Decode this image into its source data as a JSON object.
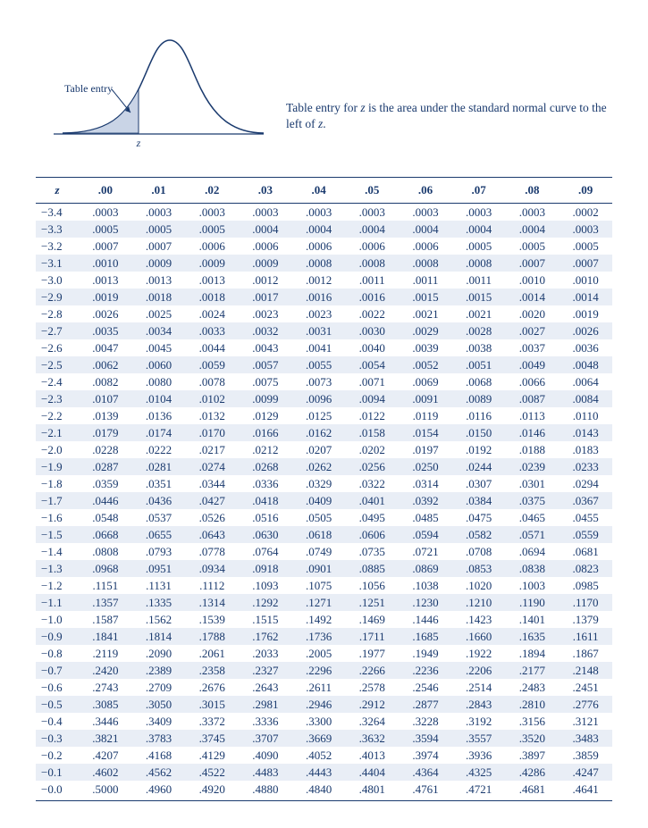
{
  "curve": {
    "entry_label": "Table entry",
    "z_label": "z",
    "stroke": "#1a3a6e",
    "fill": "#c9d4e6"
  },
  "caption_parts": [
    "Table entry for ",
    "z",
    " is the area under the standard normal curve to the left of ",
    "z",
    "."
  ],
  "table": {
    "header": [
      "z",
      ".00",
      ".01",
      ".02",
      ".03",
      ".04",
      ".05",
      ".06",
      ".07",
      ".08",
      ".09"
    ],
    "rows": [
      [
        "−3.4",
        ".0003",
        ".0003",
        ".0003",
        ".0003",
        ".0003",
        ".0003",
        ".0003",
        ".0003",
        ".0003",
        ".0002"
      ],
      [
        "−3.3",
        ".0005",
        ".0005",
        ".0005",
        ".0004",
        ".0004",
        ".0004",
        ".0004",
        ".0004",
        ".0004",
        ".0003"
      ],
      [
        "−3.2",
        ".0007",
        ".0007",
        ".0006",
        ".0006",
        ".0006",
        ".0006",
        ".0006",
        ".0005",
        ".0005",
        ".0005"
      ],
      [
        "−3.1",
        ".0010",
        ".0009",
        ".0009",
        ".0009",
        ".0008",
        ".0008",
        ".0008",
        ".0008",
        ".0007",
        ".0007"
      ],
      [
        "−3.0",
        ".0013",
        ".0013",
        ".0013",
        ".0012",
        ".0012",
        ".0011",
        ".0011",
        ".0011",
        ".0010",
        ".0010"
      ],
      [
        "−2.9",
        ".0019",
        ".0018",
        ".0018",
        ".0017",
        ".0016",
        ".0016",
        ".0015",
        ".0015",
        ".0014",
        ".0014"
      ],
      [
        "−2.8",
        ".0026",
        ".0025",
        ".0024",
        ".0023",
        ".0023",
        ".0022",
        ".0021",
        ".0021",
        ".0020",
        ".0019"
      ],
      [
        "−2.7",
        ".0035",
        ".0034",
        ".0033",
        ".0032",
        ".0031",
        ".0030",
        ".0029",
        ".0028",
        ".0027",
        ".0026"
      ],
      [
        "−2.6",
        ".0047",
        ".0045",
        ".0044",
        ".0043",
        ".0041",
        ".0040",
        ".0039",
        ".0038",
        ".0037",
        ".0036"
      ],
      [
        "−2.5",
        ".0062",
        ".0060",
        ".0059",
        ".0057",
        ".0055",
        ".0054",
        ".0052",
        ".0051",
        ".0049",
        ".0048"
      ],
      [
        "−2.4",
        ".0082",
        ".0080",
        ".0078",
        ".0075",
        ".0073",
        ".0071",
        ".0069",
        ".0068",
        ".0066",
        ".0064"
      ],
      [
        "−2.3",
        ".0107",
        ".0104",
        ".0102",
        ".0099",
        ".0096",
        ".0094",
        ".0091",
        ".0089",
        ".0087",
        ".0084"
      ],
      [
        "−2.2",
        ".0139",
        ".0136",
        ".0132",
        ".0129",
        ".0125",
        ".0122",
        ".0119",
        ".0116",
        ".0113",
        ".0110"
      ],
      [
        "−2.1",
        ".0179",
        ".0174",
        ".0170",
        ".0166",
        ".0162",
        ".0158",
        ".0154",
        ".0150",
        ".0146",
        ".0143"
      ],
      [
        "−2.0",
        ".0228",
        ".0222",
        ".0217",
        ".0212",
        ".0207",
        ".0202",
        ".0197",
        ".0192",
        ".0188",
        ".0183"
      ],
      [
        "−1.9",
        ".0287",
        ".0281",
        ".0274",
        ".0268",
        ".0262",
        ".0256",
        ".0250",
        ".0244",
        ".0239",
        ".0233"
      ],
      [
        "−1.8",
        ".0359",
        ".0351",
        ".0344",
        ".0336",
        ".0329",
        ".0322",
        ".0314",
        ".0307",
        ".0301",
        ".0294"
      ],
      [
        "−1.7",
        ".0446",
        ".0436",
        ".0427",
        ".0418",
        ".0409",
        ".0401",
        ".0392",
        ".0384",
        ".0375",
        ".0367"
      ],
      [
        "−1.6",
        ".0548",
        ".0537",
        ".0526",
        ".0516",
        ".0505",
        ".0495",
        ".0485",
        ".0475",
        ".0465",
        ".0455"
      ],
      [
        "−1.5",
        ".0668",
        ".0655",
        ".0643",
        ".0630",
        ".0618",
        ".0606",
        ".0594",
        ".0582",
        ".0571",
        ".0559"
      ],
      [
        "−1.4",
        ".0808",
        ".0793",
        ".0778",
        ".0764",
        ".0749",
        ".0735",
        ".0721",
        ".0708",
        ".0694",
        ".0681"
      ],
      [
        "−1.3",
        ".0968",
        ".0951",
        ".0934",
        ".0918",
        ".0901",
        ".0885",
        ".0869",
        ".0853",
        ".0838",
        ".0823"
      ],
      [
        "−1.2",
        ".1151",
        ".1131",
        ".1112",
        ".1093",
        ".1075",
        ".1056",
        ".1038",
        ".1020",
        ".1003",
        ".0985"
      ],
      [
        "−1.1",
        ".1357",
        ".1335",
        ".1314",
        ".1292",
        ".1271",
        ".1251",
        ".1230",
        ".1210",
        ".1190",
        ".1170"
      ],
      [
        "−1.0",
        ".1587",
        ".1562",
        ".1539",
        ".1515",
        ".1492",
        ".1469",
        ".1446",
        ".1423",
        ".1401",
        ".1379"
      ],
      [
        "−0.9",
        ".1841",
        ".1814",
        ".1788",
        ".1762",
        ".1736",
        ".1711",
        ".1685",
        ".1660",
        ".1635",
        ".1611"
      ],
      [
        "−0.8",
        ".2119",
        ".2090",
        ".2061",
        ".2033",
        ".2005",
        ".1977",
        ".1949",
        ".1922",
        ".1894",
        ".1867"
      ],
      [
        "−0.7",
        ".2420",
        ".2389",
        ".2358",
        ".2327",
        ".2296",
        ".2266",
        ".2236",
        ".2206",
        ".2177",
        ".2148"
      ],
      [
        "−0.6",
        ".2743",
        ".2709",
        ".2676",
        ".2643",
        ".2611",
        ".2578",
        ".2546",
        ".2514",
        ".2483",
        ".2451"
      ],
      [
        "−0.5",
        ".3085",
        ".3050",
        ".3015",
        ".2981",
        ".2946",
        ".2912",
        ".2877",
        ".2843",
        ".2810",
        ".2776"
      ],
      [
        "−0.4",
        ".3446",
        ".3409",
        ".3372",
        ".3336",
        ".3300",
        ".3264",
        ".3228",
        ".3192",
        ".3156",
        ".3121"
      ],
      [
        "−0.3",
        ".3821",
        ".3783",
        ".3745",
        ".3707",
        ".3669",
        ".3632",
        ".3594",
        ".3557",
        ".3520",
        ".3483"
      ],
      [
        "−0.2",
        ".4207",
        ".4168",
        ".4129",
        ".4090",
        ".4052",
        ".4013",
        ".3974",
        ".3936",
        ".3897",
        ".3859"
      ],
      [
        "−0.1",
        ".4602",
        ".4562",
        ".4522",
        ".4483",
        ".4443",
        ".4404",
        ".4364",
        ".4325",
        ".4286",
        ".4247"
      ],
      [
        "−0.0",
        ".5000",
        ".4960",
        ".4920",
        ".4880",
        ".4840",
        ".4801",
        ".4761",
        ".4721",
        ".4681",
        ".4641"
      ]
    ]
  }
}
